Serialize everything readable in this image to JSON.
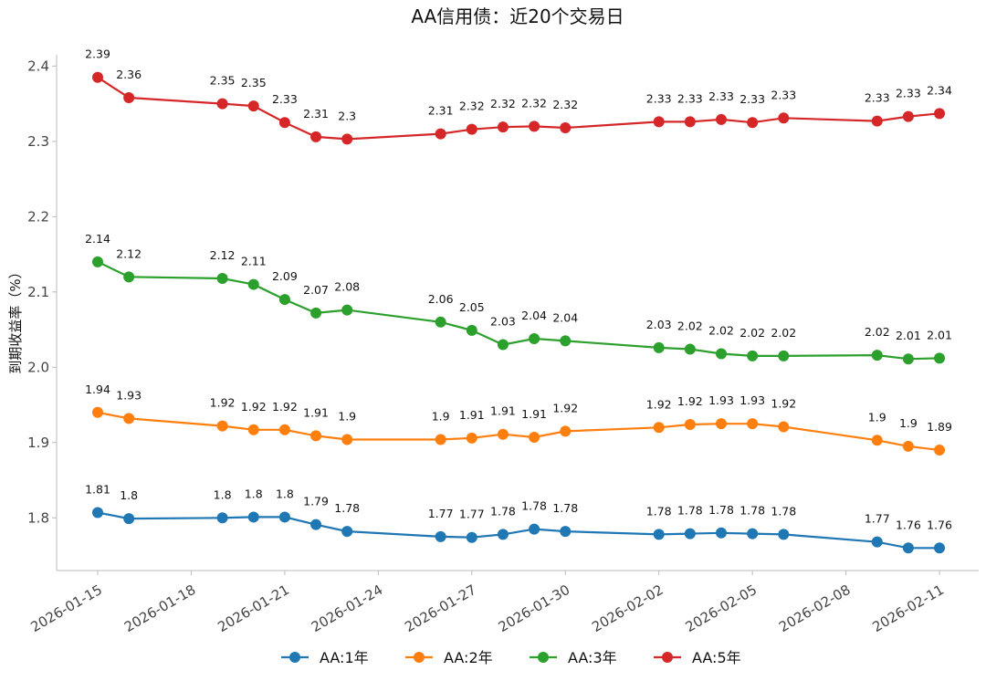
{
  "chart_data": {
    "type": "line",
    "title": "AA信用债：近20个交易日",
    "xlabel": "",
    "ylabel": "到期收益率（%）",
    "ylim": [
      1.73,
      2.415
    ],
    "yticks": [
      "1.8",
      "1.9",
      "2.0",
      "2.1",
      "2.2",
      "2.3",
      "2.4"
    ],
    "xticks": [
      "2026-01-15",
      "2026-01-18",
      "2026-01-21",
      "2026-01-24",
      "2026-01-27",
      "2026-01-30",
      "2026-02-02",
      "2026-02-05",
      "2026-02-08",
      "2026-02-11"
    ],
    "dates": [
      "2026-01-15",
      "2026-01-16",
      "2026-01-19",
      "2026-01-20",
      "2026-01-21",
      "2026-01-22",
      "2026-01-23",
      "2026-01-26",
      "2026-01-27",
      "2026-01-28",
      "2026-01-29",
      "2026-01-30",
      "2026-02-02",
      "2026-02-03",
      "2026-02-04",
      "2026-02-05",
      "2026-02-06",
      "2026-02-09",
      "2026-02-10",
      "2026-02-11"
    ],
    "series": [
      {
        "name": "AA:1年",
        "color": "#1f77b4",
        "values": [
          1.807,
          1.799,
          1.8,
          1.801,
          1.801,
          1.791,
          1.782,
          1.775,
          1.774,
          1.778,
          1.785,
          1.782,
          1.778,
          1.779,
          1.78,
          1.779,
          1.778,
          1.768,
          1.76,
          1.76
        ],
        "labels": [
          "1.81",
          "1.8",
          "1.8",
          "1.8",
          "1.8",
          "1.79",
          "1.78",
          "1.77",
          "1.77",
          "1.78",
          "1.78",
          "1.78",
          "1.78",
          "1.78",
          "1.78",
          "1.78",
          "1.78",
          "1.77",
          "1.76",
          "1.76"
        ]
      },
      {
        "name": "AA:2年",
        "color": "#ff7f0e",
        "values": [
          1.94,
          1.932,
          1.922,
          1.917,
          1.917,
          1.909,
          1.904,
          1.904,
          1.906,
          1.911,
          1.907,
          1.915,
          1.92,
          1.924,
          1.925,
          1.925,
          1.921,
          1.903,
          1.895,
          1.89
        ],
        "labels": [
          "1.94",
          "1.93",
          "1.92",
          "1.92",
          "1.92",
          "1.91",
          "1.9",
          "1.9",
          "1.91",
          "1.91",
          "1.91",
          "1.92",
          "1.92",
          "1.92",
          "1.93",
          "1.93",
          "1.92",
          "1.9",
          "1.9",
          "1.89"
        ]
      },
      {
        "name": "AA:3年",
        "color": "#2ca02c",
        "values": [
          2.14,
          2.12,
          2.118,
          2.11,
          2.09,
          2.072,
          2.076,
          2.06,
          2.049,
          2.03,
          2.038,
          2.035,
          2.026,
          2.024,
          2.018,
          2.015,
          2.015,
          2.016,
          2.011,
          2.012
        ],
        "labels": [
          "2.14",
          "2.12",
          "2.12",
          "2.11",
          "2.09",
          "2.07",
          "2.08",
          "2.06",
          "2.05",
          "2.03",
          "2.04",
          "2.04",
          "2.03",
          "2.02",
          "2.02",
          "2.02",
          "2.02",
          "2.02",
          "2.01",
          "2.01"
        ]
      },
      {
        "name": "AA:5年",
        "color": "#d62728",
        "values": [
          2.385,
          2.358,
          2.35,
          2.347,
          2.325,
          2.306,
          2.303,
          2.31,
          2.316,
          2.319,
          2.32,
          2.318,
          2.326,
          2.326,
          2.329,
          2.325,
          2.331,
          2.327,
          2.333,
          2.337
        ],
        "labels": [
          "2.39",
          "2.36",
          "2.35",
          "2.35",
          "2.33",
          "2.31",
          "2.3",
          "2.31",
          "2.32",
          "2.32",
          "2.32",
          "2.32",
          "2.33",
          "2.33",
          "2.33",
          "2.33",
          "2.33",
          "2.33",
          "2.33",
          "2.34"
        ]
      }
    ],
    "legend_position": "bottom-center",
    "grid": false
  }
}
